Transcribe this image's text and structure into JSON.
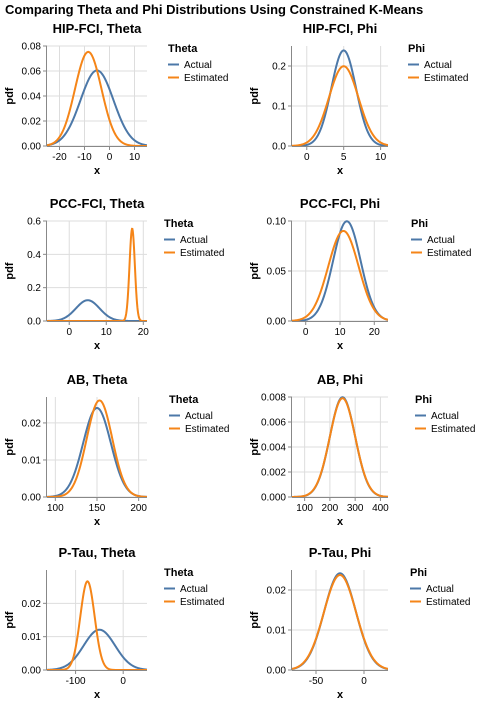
{
  "title": "Comparing Theta and Phi Distributions Using Constrained K-Means",
  "colors": {
    "actual": "#4c78a8",
    "estimated": "#f58518"
  },
  "chart_data": [
    {
      "type": "line",
      "title": "HIP-FCI, Theta",
      "xlabel": "x",
      "ylabel": "pdf",
      "xlim": [
        -25,
        15
      ],
      "ylim": [
        0,
        0.08
      ],
      "xticks": [
        -20,
        -10,
        0,
        10
      ],
      "yticks": [
        0.0,
        0.02,
        0.04,
        0.06,
        0.08
      ],
      "yticks_labels": [
        "0.00",
        "0.02",
        "0.04",
        "0.06",
        "0.08"
      ],
      "legend": {
        "title": "Theta",
        "position": "right"
      },
      "series": [
        {
          "name": "Actual",
          "distribution": "normal",
          "mean": -5,
          "sd": 6.6
        },
        {
          "name": "Estimated",
          "distribution": "normal",
          "mean": -8.5,
          "sd": 5.3
        }
      ]
    },
    {
      "type": "line",
      "title": "HIP-FCI, Phi",
      "xlabel": "x",
      "ylabel": "pdf",
      "xlim": [
        -2,
        11
      ],
      "ylim": [
        0,
        0.25
      ],
      "xticks": [
        0,
        5,
        10
      ],
      "yticks": [
        0.0,
        0.1,
        0.2
      ],
      "yticks_labels": [
        "0.0",
        "0.1",
        "0.2"
      ],
      "legend": {
        "title": "Phi",
        "position": "right"
      },
      "series": [
        {
          "name": "Actual",
          "distribution": "normal",
          "mean": 5,
          "sd": 1.67
        },
        {
          "name": "Estimated",
          "distribution": "normal",
          "mean": 5,
          "sd": 2.0
        }
      ]
    },
    {
      "type": "line",
      "title": "PCC-FCI, Theta",
      "xlabel": "x",
      "ylabel": "pdf",
      "xlim": [
        -6,
        21
      ],
      "ylim": [
        0,
        0.6
      ],
      "xticks": [
        0,
        10,
        20
      ],
      "yticks": [
        0.0,
        0.2,
        0.4,
        0.6
      ],
      "yticks_labels": [
        "0.0",
        "0.2",
        "0.4",
        "0.6"
      ],
      "legend": {
        "title": "Theta",
        "position": "right"
      },
      "series": [
        {
          "name": "Actual",
          "distribution": "normal",
          "mean": 5,
          "sd": 3.2
        },
        {
          "name": "Estimated",
          "distribution": "normal",
          "mean": 17,
          "sd": 0.72
        }
      ]
    },
    {
      "type": "line",
      "title": "PCC-FCI, Phi",
      "xlabel": "x",
      "ylabel": "pdf",
      "xlim": [
        -4,
        24
      ],
      "ylim": [
        0,
        0.1
      ],
      "xticks": [
        0,
        10,
        20
      ],
      "yticks": [
        0.0,
        0.05,
        0.1
      ],
      "yticks_labels": [
        "0.00",
        "0.05",
        "0.10"
      ],
      "legend": {
        "title": "Phi",
        "position": "right"
      },
      "series": [
        {
          "name": "Actual",
          "distribution": "normal",
          "mean": 12,
          "sd": 4.0
        },
        {
          "name": "Estimated",
          "distribution": "normal",
          "mean": 11,
          "sd": 4.43
        }
      ]
    },
    {
      "type": "line",
      "title": "AB, Theta",
      "xlabel": "x",
      "ylabel": "pdf",
      "xlim": [
        90,
        210
      ],
      "ylim": [
        0,
        0.027
      ],
      "xticks": [
        100,
        150,
        200
      ],
      "yticks": [
        0.0,
        0.01,
        0.02
      ],
      "yticks_labels": [
        "0.00",
        "0.01",
        "0.02"
      ],
      "legend": {
        "title": "Theta",
        "position": "right"
      },
      "series": [
        {
          "name": "Actual",
          "distribution": "normal",
          "mean": 150,
          "sd": 16.6
        },
        {
          "name": "Estimated",
          "distribution": "normal",
          "mean": 153,
          "sd": 15.3
        }
      ]
    },
    {
      "type": "line",
      "title": "AB, Phi",
      "xlabel": "x",
      "ylabel": "pdf",
      "xlim": [
        50,
        430
      ],
      "ylim": [
        0,
        0.008
      ],
      "xticks": [
        100,
        200,
        300,
        400
      ],
      "yticks": [
        0.0,
        0.002,
        0.004,
        0.006,
        0.008
      ],
      "yticks_labels": [
        "0.000",
        "0.002",
        "0.004",
        "0.006",
        "0.008"
      ],
      "legend": {
        "title": "Phi",
        "position": "right"
      },
      "series": [
        {
          "name": "Actual",
          "distribution": "normal",
          "mean": 250,
          "sd": 50
        },
        {
          "name": "Estimated",
          "distribution": "normal",
          "mean": 250,
          "sd": 50.5
        }
      ]
    },
    {
      "type": "line",
      "title": "P-Tau, Theta",
      "xlabel": "x",
      "ylabel": "pdf",
      "xlim": [
        -160,
        50
      ],
      "ylim": [
        0,
        0.03
      ],
      "xticks": [
        -100,
        0
      ],
      "yticks": [
        0.0,
        0.01,
        0.02
      ],
      "yticks_labels": [
        "0.00",
        "0.01",
        "0.02"
      ],
      "legend": {
        "title": "Theta",
        "position": "right"
      },
      "series": [
        {
          "name": "Actual",
          "distribution": "normal",
          "mean": -50,
          "sd": 33
        },
        {
          "name": "Estimated",
          "distribution": "normal",
          "mean": -75,
          "sd": 15
        }
      ]
    },
    {
      "type": "line",
      "title": "P-Tau, Phi",
      "xlabel": "x",
      "ylabel": "pdf",
      "xlim": [
        -75,
        25
      ],
      "ylim": [
        0,
        0.025
      ],
      "xticks": [
        -50,
        0
      ],
      "yticks": [
        0.0,
        0.01,
        0.02
      ],
      "yticks_labels": [
        "0.00",
        "0.01",
        "0.02"
      ],
      "legend": {
        "title": "Phi",
        "position": "right"
      },
      "series": [
        {
          "name": "Actual",
          "distribution": "normal",
          "mean": -25,
          "sd": 16.5
        },
        {
          "name": "Estimated",
          "distribution": "normal",
          "mean": -25,
          "sd": 16.8
        }
      ]
    }
  ]
}
